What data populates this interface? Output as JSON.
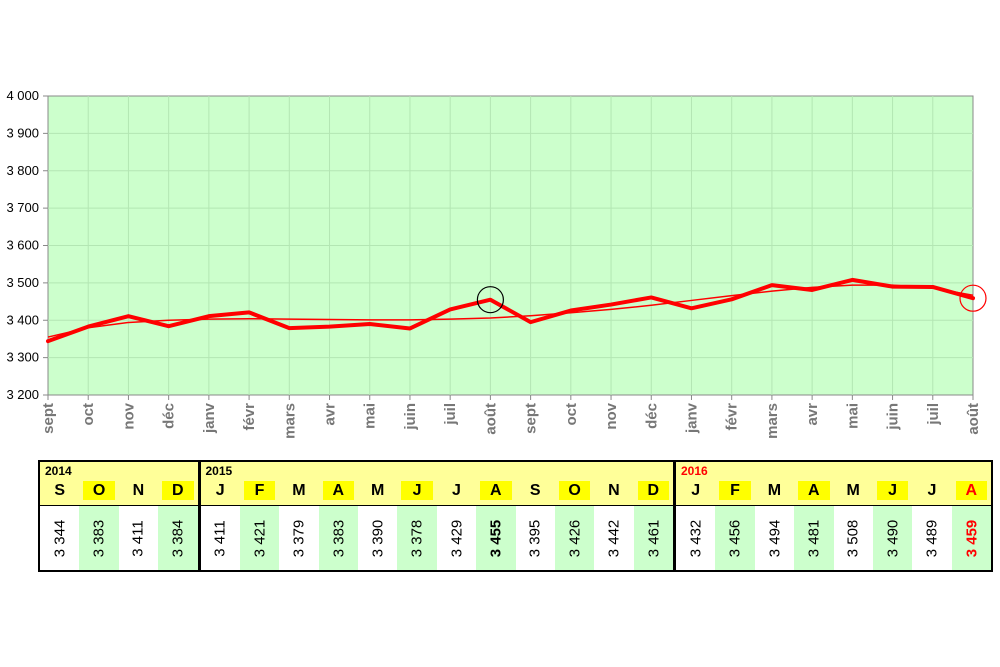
{
  "chart_data": {
    "type": "line",
    "y_axis": {
      "ticks": [
        "3 200",
        "3 300",
        "3 400",
        "3 500",
        "3 600",
        "3 700",
        "3 800",
        "3 900",
        "4 000"
      ],
      "ylim": [
        3200,
        4000
      ]
    },
    "categories": [
      "sept",
      "oct",
      "nov",
      "déc",
      "janv",
      "févr",
      "mars",
      "avr",
      "mai",
      "juin",
      "juil",
      "août",
      "sept",
      "oct",
      "nov",
      "déc",
      "janv",
      "févr",
      "mars",
      "avr",
      "mai",
      "juin",
      "juil",
      "août"
    ],
    "series": [
      {
        "values": [
          3344,
          3383,
          3411,
          3384,
          3411,
          3421,
          3379,
          3383,
          3390,
          3378,
          3429,
          3455,
          3395,
          3426,
          3442,
          3461,
          3432,
          3456,
          3494,
          3481,
          3508,
          3490,
          3489,
          3459
        ],
        "color": "#ff0000"
      }
    ],
    "trend_line": [
      3355,
      3380,
      3394,
      3400,
      3403,
      3404,
      3403,
      3402,
      3401,
      3401,
      3403,
      3406,
      3412,
      3420,
      3429,
      3440,
      3453,
      3466,
      3478,
      3488,
      3494,
      3494,
      3486,
      3467
    ],
    "highlighted_points": [
      {
        "index": 11,
        "color": "#000000"
      },
      {
        "index": 23,
        "color": "#ff0000"
      }
    ],
    "plot_background": "#ccffcc",
    "grid": true,
    "grid_color": "#b3e6b3"
  },
  "table": {
    "years": [
      {
        "label": "2014",
        "label_color": "#000000",
        "months": [
          "S",
          "O",
          "N",
          "D"
        ],
        "values": [
          "3 344",
          "3 383",
          "3 411",
          "3 384"
        ]
      },
      {
        "label": "2015",
        "label_color": "#000000",
        "months": [
          "J",
          "F",
          "M",
          "A",
          "M",
          "J",
          "J",
          "A",
          "S",
          "O",
          "N",
          "D"
        ],
        "values": [
          "3 411",
          "3 421",
          "3 379",
          "3 383",
          "3 390",
          "3 378",
          "3 429",
          "3 455",
          "3 395",
          "3 426",
          "3 442",
          "3 461"
        ]
      },
      {
        "label": "2016",
        "label_color": "#ff0000",
        "months": [
          "J",
          "F",
          "M",
          "A",
          "M",
          "J",
          "J",
          "A"
        ],
        "values": [
          "3 432",
          "3 456",
          "3 494",
          "3 481",
          "3 508",
          "3 490",
          "3 489",
          "3 459"
        ]
      }
    ]
  }
}
